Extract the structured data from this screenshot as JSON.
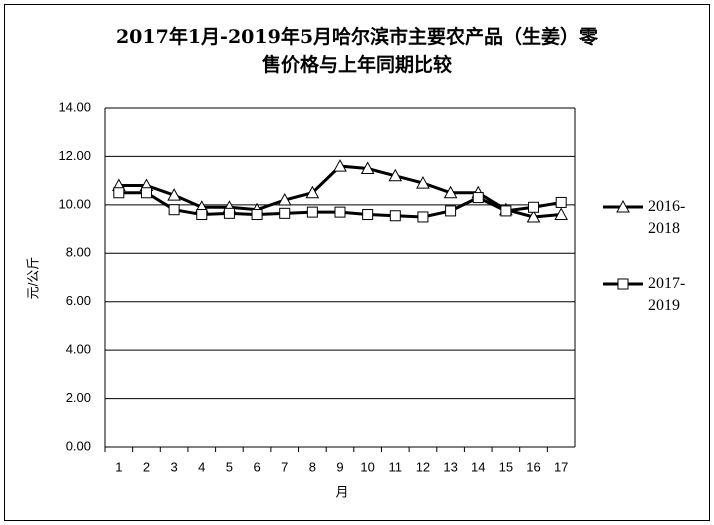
{
  "chart_data": {
    "type": "line",
    "title": [
      "2017年1月-2019年5月哈尔滨市主要农产品（生姜）零",
      "售价格与上年同期比较"
    ],
    "x_label": "月",
    "y_label": "元/公斤",
    "categories": [
      "1",
      "2",
      "3",
      "4",
      "5",
      "6",
      "7",
      "8",
      "9",
      "10",
      "11",
      "12",
      "13",
      "14",
      "15",
      "16",
      "17"
    ],
    "series": [
      {
        "name": "2016-2018",
        "color": "#000000",
        "marker": "triangle",
        "values": [
          10.8,
          10.8,
          10.4,
          9.9,
          9.9,
          9.8,
          10.2,
          10.5,
          11.6,
          11.5,
          11.2,
          10.9,
          10.5,
          10.5,
          9.8,
          9.5,
          9.6
        ]
      },
      {
        "name": "2017-2019",
        "color": "#000000",
        "marker": "square",
        "values": [
          10.5,
          10.5,
          9.8,
          9.6,
          9.65,
          9.6,
          9.65,
          9.7,
          9.7,
          9.6,
          9.55,
          9.5,
          9.75,
          10.3,
          9.75,
          9.9,
          10.1
        ]
      }
    ],
    "ylim": [
      0,
      14
    ],
    "yticks": [
      {
        "value": 0,
        "label": "0.00"
      },
      {
        "value": 2,
        "label": "2.00"
      },
      {
        "value": 4,
        "label": "4.00"
      },
      {
        "value": 6,
        "label": "6.00"
      },
      {
        "value": 8,
        "label": "8.00"
      },
      {
        "value": 10,
        "label": "10.00"
      },
      {
        "value": 12,
        "label": "12.00"
      },
      {
        "value": 14,
        "label": "14.00"
      }
    ],
    "grid": true,
    "legend": "right"
  }
}
